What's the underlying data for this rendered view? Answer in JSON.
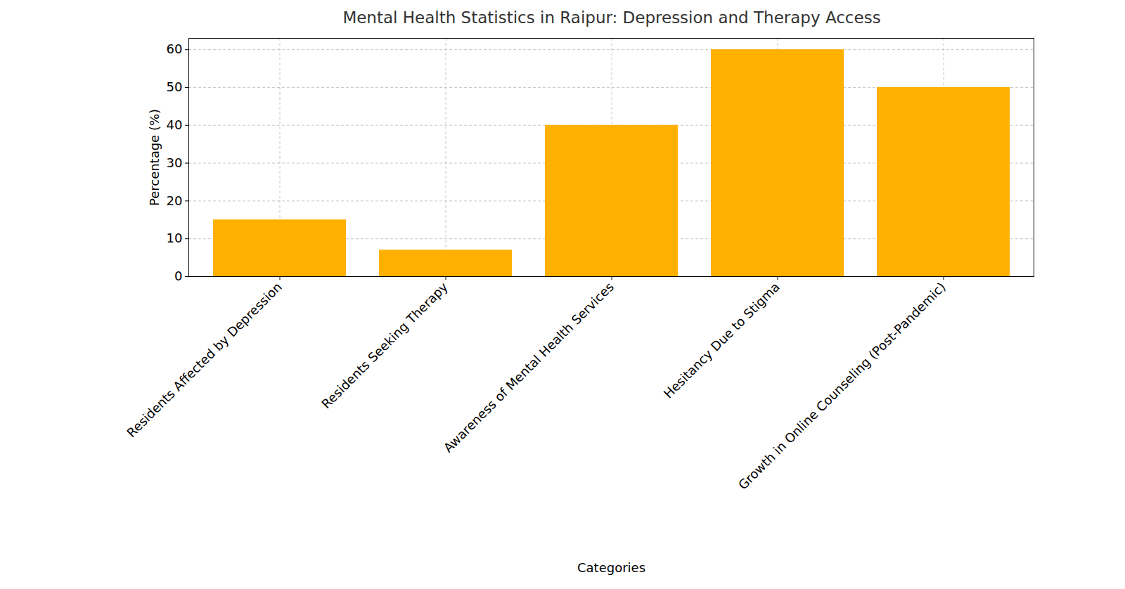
{
  "chart_data": {
    "type": "bar",
    "title": "Mental Health Statistics in Raipur: Depression and Therapy Access",
    "x_label": "Categories",
    "y_label": "Percentage (%)",
    "categories": [
      "Residents Affected by Depression",
      "Residents Seeking Therapy",
      "Awareness of Mental Health Services",
      "Hesitancy Due to Stigma",
      "Growth in Online Counseling (Post-Pandemic)"
    ],
    "values": [
      15,
      7,
      40,
      60,
      50
    ],
    "color": "#ffb000",
    "ylim": [
      0,
      63
    ],
    "yticks": [
      0,
      10,
      20,
      30,
      40,
      50,
      60
    ],
    "grid": true
  }
}
